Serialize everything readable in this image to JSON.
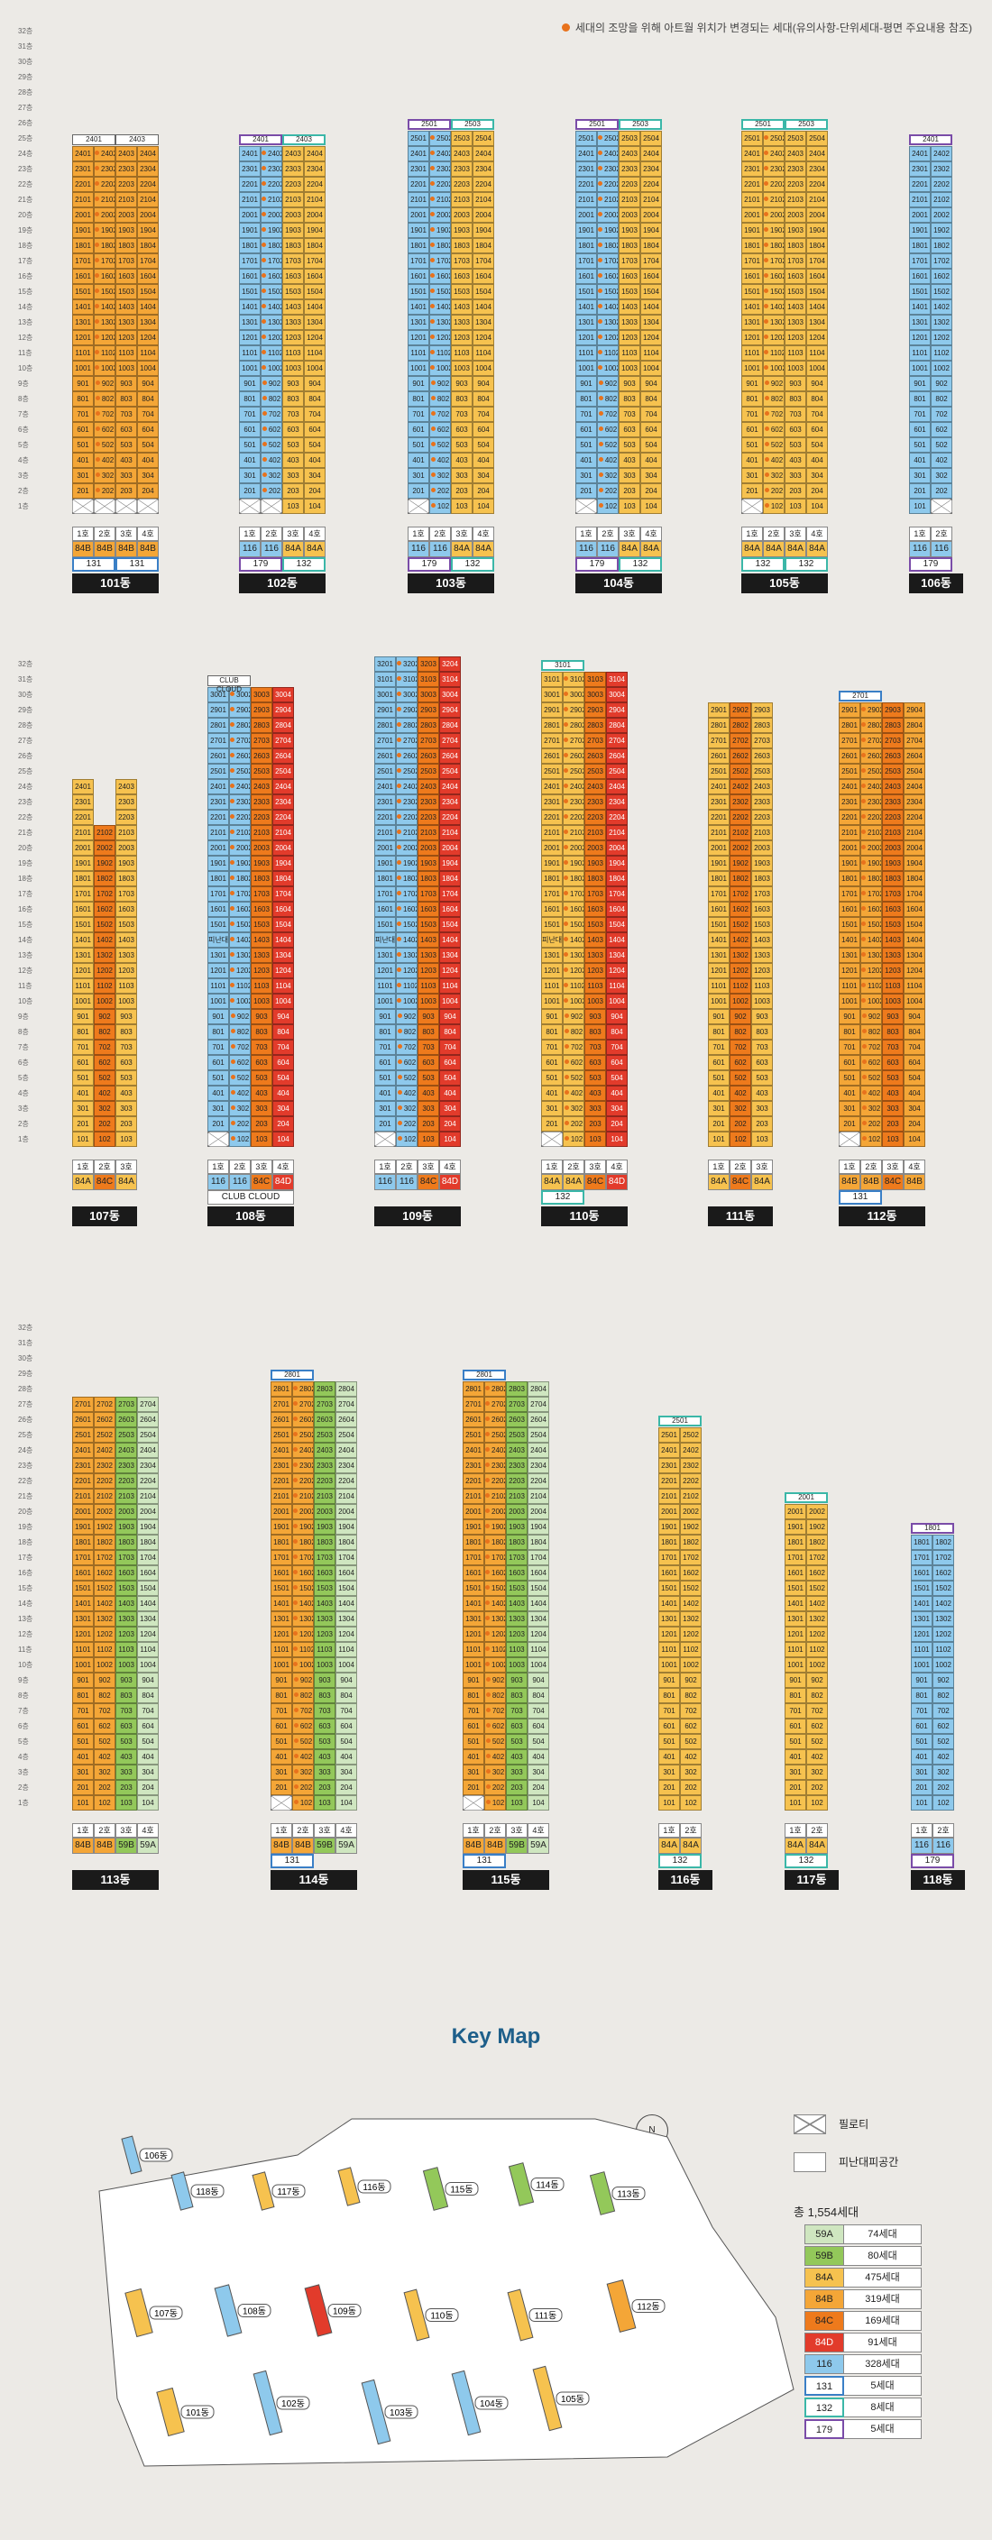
{
  "notice": "세대의 조망을 위해 아트월 위치가 변경되는 세대(유의사항-단위세대-평면 주요내용 참조)",
  "floors": [
    "32층",
    "31층",
    "30층",
    "29층",
    "28층",
    "27층",
    "26층",
    "25층",
    "24층",
    "23층",
    "22층",
    "21층",
    "20층",
    "19층",
    "18층",
    "17층",
    "16층",
    "15층",
    "14층",
    "13층",
    "12층",
    "11층",
    "10층",
    "9층",
    "8층",
    "7층",
    "6층",
    "5층",
    "4층",
    "3층",
    "2층",
    "1층"
  ],
  "line_label_suffix": "호",
  "sections": [
    {
      "buildings": [
        {
          "name": "101동",
          "lines": 4,
          "maxFloor": 24,
          "lineTypes": [
            "84B",
            "84B",
            "84B",
            "84B"
          ],
          "pilotis": [
            [
              1,
              1
            ],
            [
              1,
              2
            ],
            [
              1,
              3
            ],
            [
              1,
              4
            ]
          ],
          "dots": [
            2
          ],
          "tops": [
            {
              "text": "2401",
              "lines": [
                1,
                2
              ],
              "style": ""
            },
            {
              "text": "2403",
              "lines": [
                3,
                4
              ],
              "style": ""
            }
          ],
          "aggregates": [
            {
              "text": "131",
              "lines": [
                1,
                2
              ],
              "style": "b-131"
            },
            {
              "text": "131",
              "lines": [
                3,
                4
              ],
              "style": "b-131"
            }
          ]
        },
        {
          "name": "102동",
          "lines": 4,
          "maxFloor": 24,
          "lineTypes": [
            "116",
            "116",
            "84A",
            "84A"
          ],
          "pilotis": [
            [
              1,
              1
            ],
            [
              1,
              2
            ]
          ],
          "dots": [
            2
          ],
          "tops": [
            {
              "text": "2401",
              "lines": [
                1,
                2
              ],
              "style": "b-179"
            },
            {
              "text": "2403",
              "lines": [
                3,
                4
              ],
              "style": "b-132"
            }
          ],
          "aggregates": [
            {
              "text": "179",
              "lines": [
                1,
                2
              ],
              "style": "b-179"
            },
            {
              "text": "132",
              "lines": [
                3,
                4
              ],
              "style": "b-132"
            }
          ]
        },
        {
          "name": "103동",
          "lines": 4,
          "maxFloor": 25,
          "lineTypes": [
            "116",
            "116",
            "84A",
            "84A"
          ],
          "pilotis": [
            [
              1,
              1
            ]
          ],
          "dots": [
            2
          ],
          "tops": [
            {
              "text": "2501",
              "lines": [
                1,
                2
              ],
              "style": "b-179"
            },
            {
              "text": "2503",
              "lines": [
                3,
                4
              ],
              "style": "b-132"
            }
          ],
          "aggregates": [
            {
              "text": "179",
              "lines": [
                1,
                2
              ],
              "style": "b-179"
            },
            {
              "text": "132",
              "lines": [
                3,
                4
              ],
              "style": "b-132"
            }
          ]
        },
        {
          "name": "104동",
          "lines": 4,
          "maxFloor": 25,
          "lineTypes": [
            "116",
            "116",
            "84A",
            "84A"
          ],
          "pilotis": [
            [
              1,
              1
            ]
          ],
          "dots": [
            2
          ],
          "tops": [
            {
              "text": "2501",
              "lines": [
                1,
                2
              ],
              "style": "b-179"
            },
            {
              "text": "2503",
              "lines": [
                3,
                4
              ],
              "style": "b-132"
            }
          ],
          "aggregates": [
            {
              "text": "179",
              "lines": [
                1,
                2
              ],
              "style": "b-179"
            },
            {
              "text": "132",
              "lines": [
                3,
                4
              ],
              "style": "b-132"
            }
          ]
        },
        {
          "name": "105동",
          "lines": 4,
          "maxFloor": 25,
          "lineTypes": [
            "84A",
            "84A",
            "84A",
            "84A"
          ],
          "pilotis": [
            [
              1,
              1
            ]
          ],
          "dots": [
            2
          ],
          "tops": [
            {
              "text": "2501",
              "lines": [
                1,
                2
              ],
              "style": "b-132"
            },
            {
              "text": "2503",
              "lines": [
                3,
                4
              ],
              "style": "b-132"
            }
          ],
          "aggregates": [
            {
              "text": "132",
              "lines": [
                1,
                2
              ],
              "style": "b-132"
            },
            {
              "text": "132",
              "lines": [
                3,
                4
              ],
              "style": "b-132"
            }
          ]
        },
        {
          "name": "106동",
          "lines": 2,
          "maxFloor": 24,
          "lineTypes": [
            "116",
            "116"
          ],
          "pilotis": [
            [
              1,
              2
            ]
          ],
          "dots": [],
          "tops": [
            {
              "text": "2401",
              "lines": [
                1,
                2
              ],
              "style": "b-179"
            }
          ],
          "aggregates": [
            {
              "text": "179",
              "lines": [
                1,
                2
              ],
              "style": "b-179"
            }
          ]
        }
      ]
    },
    {
      "buildings": [
        {
          "name": "107동",
          "lines": 3,
          "maxFloor": 24,
          "lineTypes": [
            "84A",
            "84C",
            "84A"
          ],
          "pilotis": [],
          "missing": [
            [
              24,
              2
            ],
            [
              23,
              2
            ],
            [
              22,
              2
            ]
          ],
          "dots": [],
          "tops": [],
          "aggregates": []
        },
        {
          "name": "108동",
          "lines": 4,
          "maxFloor": 30,
          "lineTypes": [
            "116",
            "116",
            "84C",
            "84D"
          ],
          "pilotis": [
            [
              1,
              1
            ]
          ],
          "dots": [
            2
          ],
          "special": [
            {
              "floor": 14,
              "line": 1,
              "text": "피난대피"
            }
          ],
          "tops": [
            {
              "text": "CLUB CLOUD",
              "lines": [
                1,
                2
              ],
              "style": "b-club"
            }
          ],
          "aggregates": [
            {
              "text": "CLUB CLOUD",
              "lines": [
                1,
                4
              ],
              "style": "b-club"
            }
          ]
        },
        {
          "name": "109동",
          "lines": 4,
          "maxFloor": 32,
          "lineTypes": [
            "116",
            "116",
            "84C",
            "84D"
          ],
          "pilotis": [
            [
              1,
              1
            ]
          ],
          "dots": [
            2
          ],
          "special": [
            {
              "floor": 14,
              "line": 1,
              "text": "피난대피"
            }
          ],
          "tops": [],
          "aggregates": []
        },
        {
          "name": "110동",
          "lines": 4,
          "maxFloor": 31,
          "lineTypes": [
            "84A",
            "84A",
            "84C",
            "84D"
          ],
          "pilotis": [
            [
              1,
              1
            ]
          ],
          "dots": [
            2
          ],
          "special": [
            {
              "floor": 14,
              "line": 1,
              "text": "피난대피"
            }
          ],
          "tops": [
            {
              "text": "3101",
              "lines": [
                1,
                2
              ],
              "style": "b-132"
            }
          ],
          "aggregates": [
            {
              "text": "132",
              "lines": [
                1,
                2
              ],
              "style": "b-132"
            }
          ]
        },
        {
          "name": "111동",
          "lines": 3,
          "maxFloor": 29,
          "lineTypes": [
            "84A",
            "84C",
            "84A"
          ],
          "pilotis": [],
          "dots": [],
          "tops": [],
          "aggregates": []
        },
        {
          "name": "112동",
          "lines": 4,
          "maxFloor": 29,
          "lineTypes": [
            "84B",
            "84B",
            "84C",
            "84B"
          ],
          "pilotis": [
            [
              1,
              1
            ]
          ],
          "dots": [
            2
          ],
          "tops": [
            {
              "text": "2701",
              "lines": [
                1,
                2
              ],
              "style": "b-131"
            }
          ],
          "aggregates": [
            {
              "text": "131",
              "lines": [
                1,
                2
              ],
              "style": "b-131"
            }
          ]
        }
      ]
    },
    {
      "buildings": [
        {
          "name": "113동",
          "lines": 4,
          "maxFloor": 27,
          "lineTypes": [
            "84B",
            "84B",
            "59B",
            "59A"
          ],
          "pilotis": [],
          "dots": [],
          "tops": [],
          "aggregates": []
        },
        {
          "name": "114동",
          "lines": 4,
          "maxFloor": 28,
          "lineTypes": [
            "84B",
            "84B",
            "59B",
            "59A"
          ],
          "pilotis": [
            [
              1,
              1
            ]
          ],
          "dots": [
            2
          ],
          "tops": [
            {
              "text": "2801",
              "lines": [
                1,
                2
              ],
              "style": "b-131"
            }
          ],
          "aggregates": [
            {
              "text": "131",
              "lines": [
                1,
                2
              ],
              "style": "b-131"
            }
          ]
        },
        {
          "name": "115동",
          "lines": 4,
          "maxFloor": 28,
          "lineTypes": [
            "84B",
            "84B",
            "59B",
            "59A"
          ],
          "pilotis": [
            [
              1,
              1
            ]
          ],
          "dots": [
            2
          ],
          "tops": [
            {
              "text": "2801",
              "lines": [
                1,
                2
              ],
              "style": "b-131"
            }
          ],
          "aggregates": [
            {
              "text": "131",
              "lines": [
                1,
                2
              ],
              "style": "b-131"
            }
          ]
        },
        {
          "name": "116동",
          "lines": 2,
          "maxFloor": 25,
          "lineTypes": [
            "84A",
            "84A"
          ],
          "pilotis": [],
          "dots": [],
          "tops": [
            {
              "text": "2501",
              "lines": [
                1,
                2
              ],
              "style": "b-132"
            }
          ],
          "aggregates": [
            {
              "text": "132",
              "lines": [
                1,
                2
              ],
              "style": "b-132"
            }
          ]
        },
        {
          "name": "117동",
          "lines": 2,
          "maxFloor": 20,
          "lineTypes": [
            "84A",
            "84A"
          ],
          "pilotis": [],
          "dots": [],
          "tops": [
            {
              "text": "2001",
              "lines": [
                1,
                2
              ],
              "style": "b-132"
            }
          ],
          "aggregates": [
            {
              "text": "132",
              "lines": [
                1,
                2
              ],
              "style": "b-132"
            }
          ]
        },
        {
          "name": "118동",
          "lines": 2,
          "maxFloor": 18,
          "lineTypes": [
            "116",
            "116"
          ],
          "pilotis": [],
          "dots": [],
          "tops": [
            {
              "text": "1801",
              "lines": [
                1,
                2
              ],
              "style": "b-179"
            }
          ],
          "aggregates": [
            {
              "text": "179",
              "lines": [
                1,
                2
              ],
              "style": "b-179"
            }
          ]
        }
      ]
    }
  ],
  "keymap": {
    "title": "Key Map",
    "compass": "N",
    "legend_pilotis": "필로티",
    "legend_refuge": "피난대피공간",
    "total": "총 1,554세대",
    "types": [
      {
        "type": "59A",
        "count": "74세대",
        "color": "#cfe6c0"
      },
      {
        "type": "59B",
        "count": "80세대",
        "color": "#93c85a"
      },
      {
        "type": "84A",
        "count": "475세대",
        "color": "#f6c24f"
      },
      {
        "type": "84B",
        "count": "319세대",
        "color": "#f4a637"
      },
      {
        "type": "84C",
        "count": "169세대",
        "color": "#ee7a1c"
      },
      {
        "type": "84D",
        "count": "91세대",
        "color": "#e23b2b"
      },
      {
        "type": "116",
        "count": "328세대",
        "color": "#8ec9ec"
      },
      {
        "type": "131",
        "count": "5세대",
        "color": "#ffffff"
      },
      {
        "type": "132",
        "count": "8세대",
        "color": "#ffffff"
      },
      {
        "type": "179",
        "count": "5세대",
        "color": "#ffffff"
      }
    ],
    "map_buildings": [
      "101동",
      "102동",
      "103동",
      "104동",
      "105동",
      "106동",
      "107동",
      "108동",
      "109동",
      "110동",
      "111동",
      "112동",
      "113동",
      "114동",
      "115동",
      "116동",
      "117동",
      "118동"
    ]
  }
}
